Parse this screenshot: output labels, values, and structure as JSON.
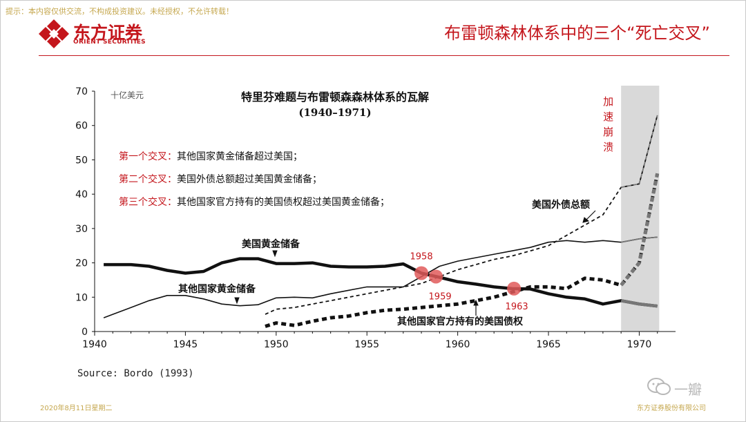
{
  "header": {
    "disclaimer": "提示：本内容仅供交流，不构成投资建议。未经授权，不允许转载！",
    "logo_cn": "东方证券",
    "logo_en": "ORIENT SECURITIES",
    "slide_title": "布雷顿森林体系中的三个“死亡交叉”"
  },
  "footer": {
    "source": "Source: Bordo (1993)",
    "date": "2020年8月11日星期二",
    "company": "东方证券股份有限公司",
    "watermark": "一瓣"
  },
  "colors": {
    "brand_red": "#c4161c",
    "footer_gold": "#c5a74e",
    "cross_marker": "#e05a5a",
    "highlight": "#d9d9d9"
  },
  "chart_data": {
    "type": "line",
    "title": "特里芬难题与布雷顿森森林体系的瓦解",
    "subtitle": "(1940–1971)",
    "unit_label": "十亿美元",
    "xlim": [
      1940,
      1972
    ],
    "ylim": [
      0,
      70
    ],
    "x_ticks": [
      1940,
      1945,
      1950,
      1955,
      1960,
      1965,
      1970
    ],
    "y_ticks": [
      0,
      10,
      20,
      30,
      40,
      50,
      60,
      70
    ],
    "grid": false,
    "highlight": {
      "from": 1969,
      "to": 1971.1,
      "label": "加速崩溃"
    },
    "crossings": {
      "label_lines": [
        {
          "prefix": "第一个交叉：",
          "text": "其他国家黄金储备超过美国；"
        },
        {
          "prefix": "第二个交叉：",
          "text": "美国外债总额超过美国黄金储备；"
        },
        {
          "prefix": "第三个交叉：",
          "text": "其他国家官方持有的美国债权超过美国黄金储备；"
        }
      ],
      "points": [
        {
          "label": "1958",
          "x": 1958,
          "y": 17
        },
        {
          "label": "1959",
          "x": 1958.8,
          "y": 16
        },
        {
          "label": "1963",
          "x": 1963.1,
          "y": 12.5
        }
      ]
    },
    "series": [
      {
        "name": "美国黄金储备",
        "style": "thick-solid",
        "x": [
          1940.5,
          1941,
          1942,
          1943,
          1944,
          1945,
          1946,
          1947,
          1948,
          1949,
          1950,
          1951,
          1952,
          1953,
          1954,
          1955,
          1956,
          1957,
          1958,
          1959,
          1960,
          1961,
          1962,
          1963,
          1964,
          1965,
          1966,
          1967,
          1968,
          1969,
          1970,
          1971
        ],
        "y": [
          19.5,
          19.5,
          19.5,
          19,
          17.8,
          17,
          17.5,
          20,
          21.2,
          21.2,
          19.8,
          19.8,
          20,
          19,
          18.8,
          18.8,
          19,
          19.7,
          17,
          15.8,
          14.5,
          13.8,
          13,
          12.5,
          12.4,
          11,
          10,
          9.5,
          8,
          9,
          8,
          7.4
        ]
      },
      {
        "name": "其他国家黄金储备",
        "style": "thin-solid",
        "x": [
          1940.5,
          1941,
          1942,
          1943,
          1944,
          1945,
          1946,
          1947,
          1948,
          1949,
          1950,
          1951,
          1952,
          1953,
          1954,
          1955,
          1956,
          1957,
          1958,
          1959,
          1960,
          1961,
          1962,
          1963,
          1964,
          1965,
          1966,
          1967,
          1968,
          1969,
          1970,
          1971
        ],
        "y": [
          4,
          5,
          7,
          9,
          10.5,
          10.5,
          9.5,
          8,
          7.5,
          7.8,
          9.8,
          10,
          9.8,
          11,
          12,
          13,
          13,
          13,
          16,
          19,
          20.5,
          21.5,
          22.5,
          23.5,
          24.5,
          26,
          26.5,
          26,
          26.5,
          26,
          27,
          27.5
        ]
      },
      {
        "name": "美国外债总额",
        "style": "thin-dashed",
        "x": [
          1949.4,
          1950,
          1951,
          1952,
          1953,
          1954,
          1955,
          1956,
          1957,
          1958,
          1959,
          1960,
          1961,
          1962,
          1963,
          1964,
          1965,
          1966,
          1967,
          1968,
          1969,
          1970,
          1971
        ],
        "y": [
          5,
          6.5,
          7,
          8,
          9,
          10,
          11,
          12,
          13,
          14,
          16,
          18,
          19.5,
          21,
          22,
          23.5,
          25,
          28,
          31,
          34,
          42,
          43,
          63
        ]
      },
      {
        "name": "其他国家官方持有的美国债权",
        "style": "thick-dashed",
        "x": [
          1949.4,
          1950,
          1951,
          1952,
          1953,
          1954,
          1955,
          1956,
          1957,
          1958,
          1959,
          1960,
          1961,
          1962,
          1963,
          1964,
          1965,
          1966,
          1967,
          1968,
          1969,
          1970,
          1971
        ],
        "y": [
          1.5,
          2.5,
          1.8,
          3,
          4,
          4.5,
          5.5,
          6.2,
          6.5,
          7,
          7.5,
          8,
          9,
          10,
          11.5,
          13,
          13,
          12.5,
          15.5,
          15,
          13.5,
          20,
          46
        ]
      }
    ],
    "annotations": [
      {
        "text": "美国黄金储备"
      },
      {
        "text": "其他国家黄金储备"
      },
      {
        "text": "美国外债总额"
      },
      {
        "text": "其他国家官方持有的美国债权"
      }
    ]
  }
}
